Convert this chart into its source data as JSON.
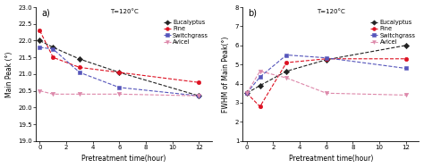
{
  "x": [
    0,
    1,
    3,
    6,
    12
  ],
  "panel_a": {
    "title": "a)",
    "ylabel": "Main Peak (°)",
    "xlabel": "Pretreatment time(hour)",
    "ylim": [
      19.0,
      23.0
    ],
    "yticks": [
      19.0,
      19.5,
      20.0,
      20.5,
      21.0,
      21.5,
      22.0,
      22.5,
      23.0
    ],
    "xlim": [
      -0.3,
      13
    ],
    "xticks": [
      0,
      2,
      4,
      6,
      8,
      10,
      12
    ],
    "eucalyptus": [
      22.0,
      21.8,
      21.45,
      21.05,
      20.35
    ],
    "pine": [
      22.3,
      21.5,
      21.2,
      21.05,
      20.75
    ],
    "switchgrass": [
      21.8,
      21.75,
      21.05,
      20.6,
      20.35
    ],
    "avicel": [
      20.5,
      20.4,
      20.4,
      20.4,
      20.35
    ]
  },
  "panel_b": {
    "title": "b)",
    "ylabel": "FWHM of Main Peak(°)",
    "xlabel": "Pretreatment time(hour)",
    "ylim": [
      1,
      8
    ],
    "yticks": [
      1,
      2,
      3,
      4,
      5,
      6,
      7,
      8
    ],
    "xlim": [
      -0.3,
      13
    ],
    "xticks": [
      0,
      2,
      4,
      6,
      8,
      10,
      12
    ],
    "eucalyptus": [
      3.5,
      3.9,
      4.65,
      5.25,
      6.0
    ],
    "pine": [
      3.5,
      2.8,
      5.1,
      5.3,
      5.3
    ],
    "switchgrass": [
      3.5,
      4.35,
      5.5,
      5.35,
      4.8
    ],
    "avicel": [
      3.5,
      4.65,
      4.3,
      3.5,
      3.4
    ]
  },
  "legend_label": "T=120°C",
  "colors": {
    "eucalyptus": "#222222",
    "pine": "#dd1122",
    "switchgrass": "#5555bb",
    "avicel": "#dd88aa"
  },
  "markers": {
    "eucalyptus": "D",
    "pine": "o",
    "switchgrass": "s",
    "avicel": "v"
  },
  "species": [
    "eucalyptus",
    "pine",
    "switchgrass",
    "avicel"
  ],
  "labels": [
    "Eucalyptus",
    "Pine",
    "Switchgrass",
    "Avicel"
  ]
}
